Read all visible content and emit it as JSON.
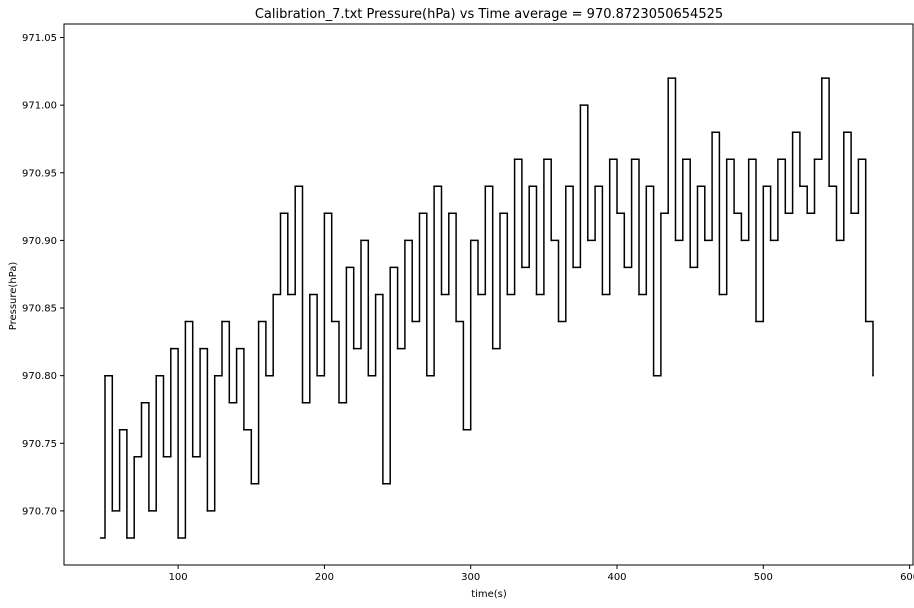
{
  "chart_data": {
    "type": "line",
    "title": "Calibration_7.txt  Pressure(hPa) vs Time  average = 970.8723050654525",
    "xlabel": "time(s)",
    "ylabel": "Pressure(hPa)",
    "xlim": [
      22,
      603
    ],
    "ylim": [
      970.66,
      971.06
    ],
    "x_ticks": [
      100,
      200,
      300,
      400,
      500,
      600
    ],
    "x_tick_labels": [
      "100",
      "200",
      "300",
      "400",
      "500",
      "600"
    ],
    "y_ticks": [
      970.7,
      970.75,
      970.8,
      970.85,
      970.9,
      970.95,
      971.0,
      971.05
    ],
    "y_tick_labels": [
      "970.70",
      "970.75",
      "970.80",
      "970.85",
      "970.90",
      "970.95",
      "971.00",
      "971.05"
    ],
    "grid": false,
    "line_color": "#000000",
    "series": [
      {
        "x": [
          47,
          50,
          55,
          60,
          65,
          70,
          75,
          80,
          85,
          90,
          95,
          100,
          105,
          110,
          115,
          120,
          125,
          130,
          135,
          140,
          145,
          150,
          155,
          160,
          165,
          170,
          175,
          180,
          185,
          190,
          195,
          200,
          205,
          210,
          215,
          220,
          225,
          230,
          235,
          240,
          245,
          250,
          255,
          260,
          265,
          270,
          275,
          280,
          285,
          290,
          295,
          300,
          305,
          310,
          315,
          320,
          325,
          330,
          335,
          340,
          345,
          350,
          355,
          360,
          365,
          370,
          375,
          380,
          385,
          390,
          395,
          400,
          405,
          410,
          415,
          420,
          425,
          430,
          435,
          440,
          445,
          450,
          455,
          460,
          465,
          470,
          475,
          480,
          485,
          490,
          495,
          500,
          505,
          510,
          515,
          520,
          525,
          530,
          535,
          540,
          545,
          550,
          555,
          560,
          565,
          570,
          575
        ],
        "values": [
          970.68,
          970.8,
          970.7,
          970.76,
          970.68,
          970.74,
          970.78,
          970.7,
          970.8,
          970.74,
          970.82,
          970.68,
          970.84,
          970.74,
          970.82,
          970.7,
          970.8,
          970.84,
          970.78,
          970.82,
          970.76,
          970.72,
          970.84,
          970.8,
          970.86,
          970.92,
          970.86,
          970.94,
          970.78,
          970.86,
          970.8,
          970.92,
          970.84,
          970.78,
          970.88,
          970.82,
          970.9,
          970.8,
          970.86,
          970.72,
          970.88,
          970.82,
          970.9,
          970.84,
          970.92,
          970.8,
          970.94,
          970.86,
          970.92,
          970.84,
          970.76,
          970.9,
          970.86,
          970.94,
          970.82,
          970.92,
          970.86,
          970.96,
          970.88,
          970.94,
          970.86,
          970.96,
          970.9,
          970.84,
          970.94,
          970.88,
          971.0,
          970.9,
          970.94,
          970.86,
          970.96,
          970.92,
          970.88,
          970.96,
          970.86,
          970.94,
          970.8,
          970.92,
          971.02,
          970.9,
          970.96,
          970.88,
          970.94,
          970.9,
          970.98,
          970.86,
          970.96,
          970.92,
          970.9,
          970.96,
          970.84,
          970.94,
          970.9,
          970.96,
          970.92,
          970.98,
          970.94,
          970.92,
          970.96,
          971.02,
          970.94,
          970.9,
          970.98,
          970.92,
          970.96,
          970.84,
          970.8
        ]
      }
    ]
  }
}
